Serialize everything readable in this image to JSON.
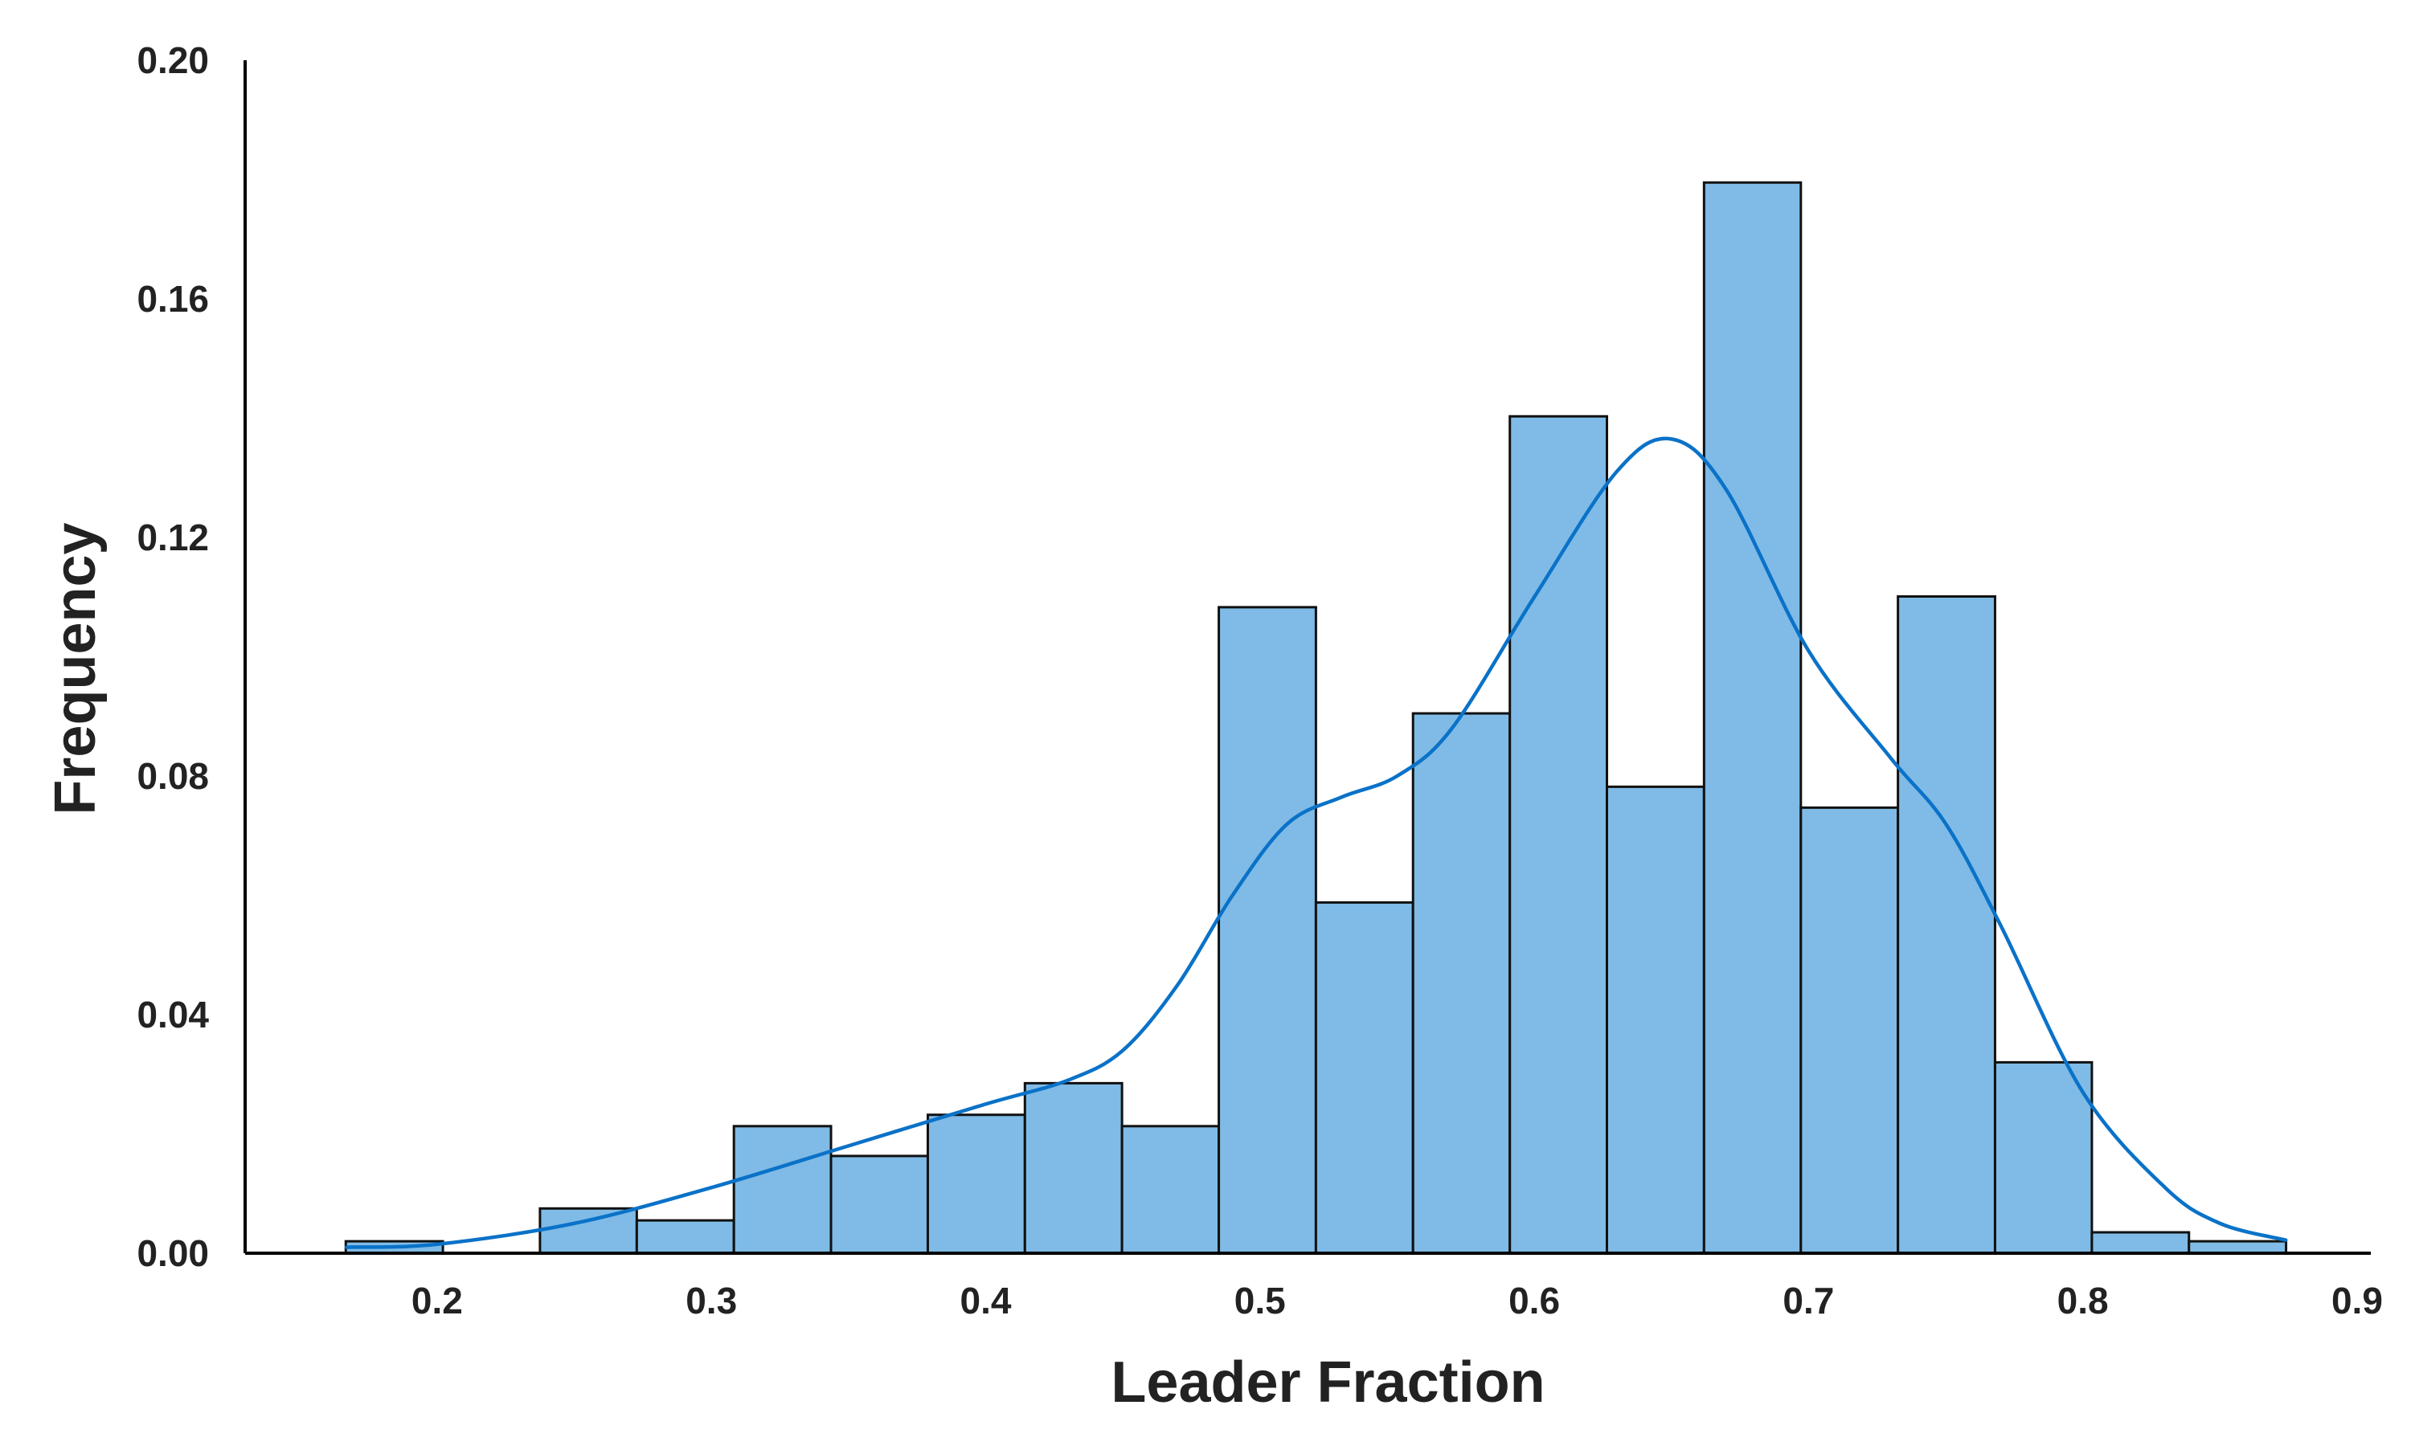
{
  "chart_data": {
    "type": "bar",
    "subtype": "histogram-with-kde",
    "title": "",
    "xlabel": "Leader Fraction",
    "ylabel": "Frequency",
    "xlim": [
      0.13,
      0.905
    ],
    "ylim": [
      0,
      0.2
    ],
    "xticks": [
      0.2,
      0.3,
      0.4,
      0.5,
      0.6,
      0.7,
      0.8,
      0.9
    ],
    "xtick_labels": [
      "0.2",
      "0.3",
      "0.4",
      "0.5",
      "0.6",
      "0.7",
      "0.8",
      "0.9"
    ],
    "yticks": [
      0,
      0.04,
      0.08,
      0.12,
      0.16,
      0.2
    ],
    "ytick_labels": [
      "0.00",
      "0.04",
      "0.08",
      "0.12",
      "0.16",
      "0.20"
    ],
    "grid": false,
    "colors": {
      "bar_fill": "#7fbbe6",
      "bar_edge": "#111111",
      "kde_line": "#0a72c8",
      "axis": "#000000"
    },
    "bins": [
      {
        "start": 0.1667,
        "end": 0.2021,
        "value": 0.002
      },
      {
        "start": 0.2021,
        "end": 0.2375,
        "value": 0.0
      },
      {
        "start": 0.2375,
        "end": 0.2728,
        "value": 0.0075
      },
      {
        "start": 0.2728,
        "end": 0.3082,
        "value": 0.0055
      },
      {
        "start": 0.3082,
        "end": 0.3436,
        "value": 0.0213
      },
      {
        "start": 0.3436,
        "end": 0.3789,
        "value": 0.0163
      },
      {
        "start": 0.3789,
        "end": 0.4143,
        "value": 0.0232
      },
      {
        "start": 0.4143,
        "end": 0.4497,
        "value": 0.0285
      },
      {
        "start": 0.4497,
        "end": 0.485,
        "value": 0.0213
      },
      {
        "start": 0.485,
        "end": 0.5204,
        "value": 0.1083
      },
      {
        "start": 0.5204,
        "end": 0.5558,
        "value": 0.0588
      },
      {
        "start": 0.5558,
        "end": 0.5911,
        "value": 0.0905
      },
      {
        "start": 0.5911,
        "end": 0.6265,
        "value": 0.1403
      },
      {
        "start": 0.6265,
        "end": 0.6619,
        "value": 0.0782
      },
      {
        "start": 0.6619,
        "end": 0.6972,
        "value": 0.1795
      },
      {
        "start": 0.6972,
        "end": 0.7326,
        "value": 0.0747
      },
      {
        "start": 0.7326,
        "end": 0.768,
        "value": 0.1101
      },
      {
        "start": 0.768,
        "end": 0.8033,
        "value": 0.032
      },
      {
        "start": 0.8033,
        "end": 0.8387,
        "value": 0.0035
      },
      {
        "start": 0.8387,
        "end": 0.8741,
        "value": 0.002
      }
    ],
    "kde": {
      "x": [
        0.167,
        0.2,
        0.25,
        0.3,
        0.35,
        0.4,
        0.43,
        0.45,
        0.47,
        0.49,
        0.51,
        0.53,
        0.55,
        0.57,
        0.6,
        0.63,
        0.65,
        0.67,
        0.7,
        0.73,
        0.75,
        0.77,
        0.8,
        0.83,
        0.85,
        0.874
      ],
      "y": [
        0.001,
        0.0015,
        0.005,
        0.011,
        0.018,
        0.025,
        0.029,
        0.034,
        0.045,
        0.06,
        0.072,
        0.0765,
        0.08,
        0.088,
        0.11,
        0.131,
        0.1365,
        0.128,
        0.101,
        0.083,
        0.072,
        0.055,
        0.027,
        0.011,
        0.005,
        0.0022
      ]
    }
  }
}
